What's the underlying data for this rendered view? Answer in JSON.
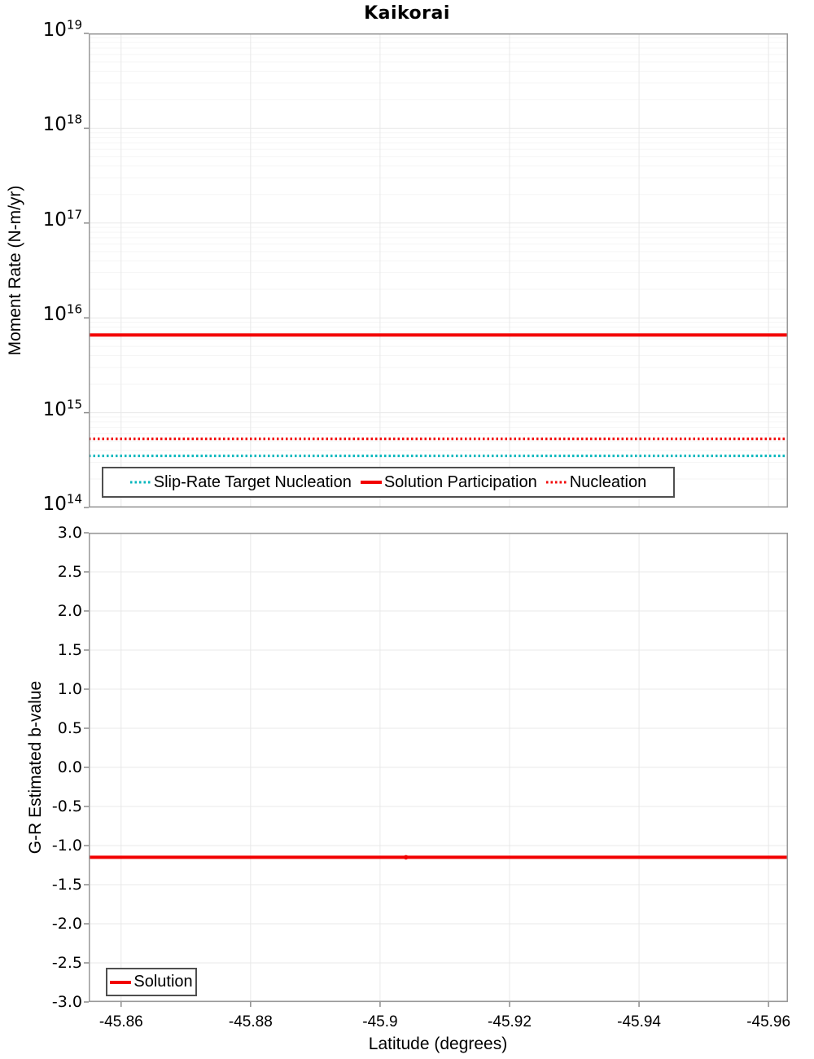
{
  "title": "Kaikorai",
  "chart_data": [
    {
      "type": "line",
      "title": "Kaikorai",
      "ylabel": "Moment Rate (N-m/yr)",
      "xlabel": "",
      "y_axis": {
        "scale": "log",
        "min": 100000000000000.0,
        "max": 1e+19,
        "tick_exponents": [
          19,
          18,
          17,
          16,
          15,
          14
        ],
        "grid": "major-and-minor"
      },
      "x_axis": {
        "left_value": -45.855,
        "right_value": -45.963,
        "ticks": [
          "-45.86",
          "-45.88",
          "-45.9",
          "-45.92",
          "-45.94",
          "-45.96"
        ],
        "show_tick_labels": false
      },
      "series": [
        {
          "name": "Slip-Rate Target Nucleation",
          "color": "#00b6bc",
          "style": "dotted",
          "y_value": 350000000000000.0
        },
        {
          "name": "Solution Participation",
          "color": "#f20000",
          "style": "solid",
          "y_value": 6600000000000000.0
        },
        {
          "name": "Nucleation",
          "color": "#f20000",
          "style": "dotted",
          "y_value": 530000000000000.0
        }
      ],
      "legend_position": "bottom-inside"
    },
    {
      "type": "line",
      "ylabel": "G-R Estimated b-value",
      "xlabel": "Latitude (degrees)",
      "y_axis": {
        "scale": "linear",
        "min": -3.0,
        "max": 3.0,
        "ticks": [
          "3.0",
          "2.5",
          "2.0",
          "1.5",
          "1.0",
          "0.5",
          "0.0",
          "-0.5",
          "-1.0",
          "-1.5",
          "-2.0",
          "-2.5",
          "-3.0"
        ],
        "grid": "major"
      },
      "x_axis": {
        "left_value": -45.855,
        "right_value": -45.963,
        "ticks": [
          "-45.86",
          "-45.88",
          "-45.9",
          "-45.92",
          "-45.94",
          "-45.96"
        ],
        "show_tick_labels": true
      },
      "series": [
        {
          "name": "Solution",
          "color": "#f20000",
          "style": "solid",
          "y_value": -1.15,
          "marker_x": -45.904
        }
      ],
      "legend_position": "bottom-left-inside"
    }
  ]
}
